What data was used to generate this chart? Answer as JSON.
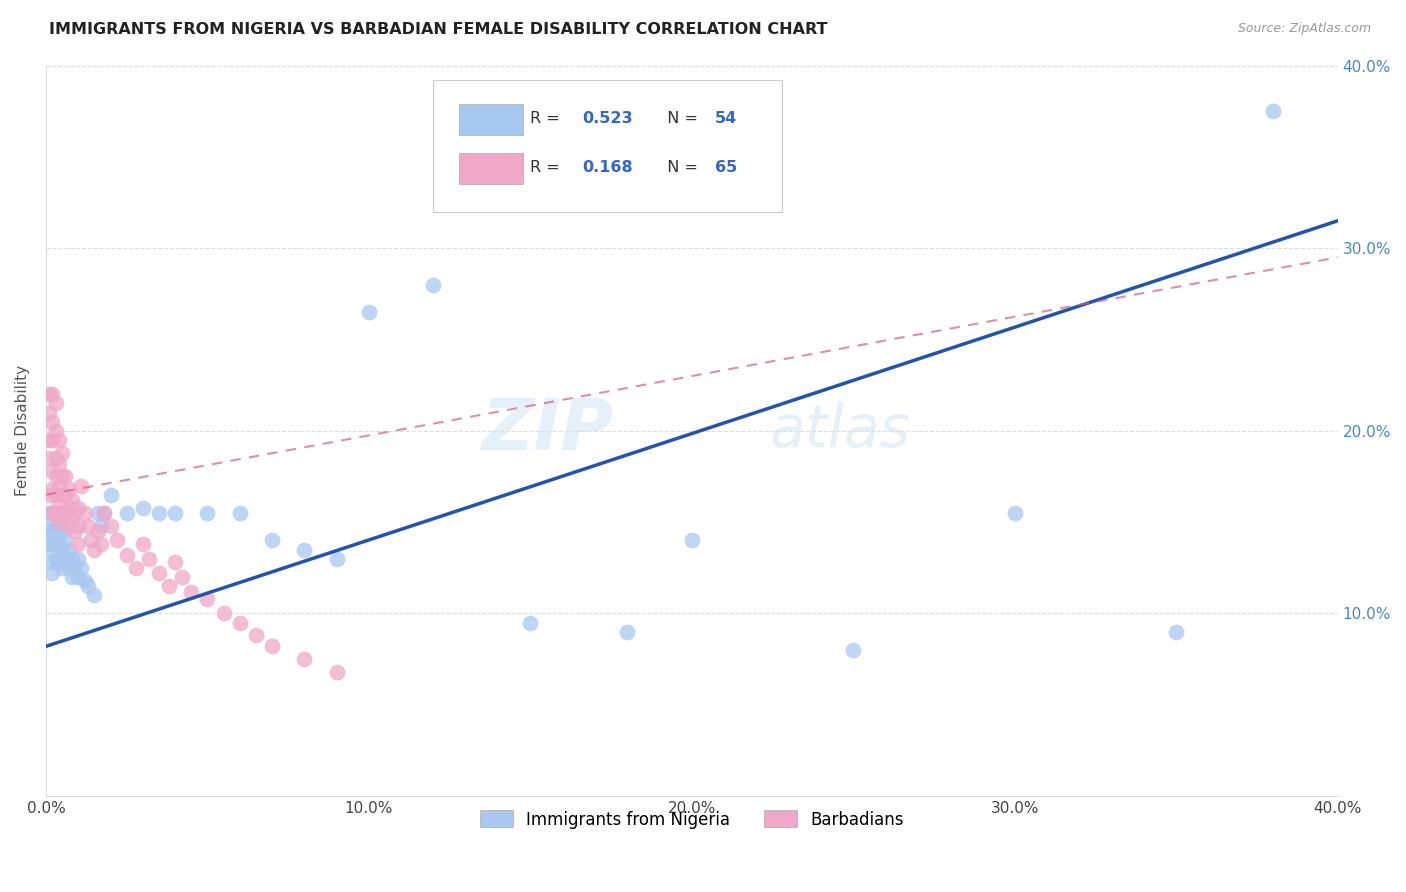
{
  "title": "IMMIGRANTS FROM NIGERIA VS BARBADIAN FEMALE DISABILITY CORRELATION CHART",
  "source": "Source: ZipAtlas.com",
  "ylabel": "Female Disability",
  "xlim": [
    0.0,
    0.4
  ],
  "ylim": [
    0.0,
    0.4
  ],
  "legend_R1": "0.523",
  "legend_N1": "54",
  "legend_R2": "0.168",
  "legend_N2": "65",
  "series1_color": "#a8c8f0",
  "series2_color": "#f0a8c8",
  "line1_color": "#2255aa",
  "line2_color": "#d06080",
  "watermark_zip": "ZIP",
  "watermark_atlas": "atlas",
  "background_color": "#ffffff",
  "grid_color": "#dddddd",
  "series1_name": "Immigrants from Nigeria",
  "series2_name": "Barbadians",
  "nigeria_x": [
    0.001,
    0.001,
    0.001,
    0.001,
    0.002,
    0.002,
    0.002,
    0.002,
    0.002,
    0.003,
    0.003,
    0.003,
    0.003,
    0.004,
    0.004,
    0.004,
    0.005,
    0.005,
    0.005,
    0.006,
    0.006,
    0.007,
    0.007,
    0.008,
    0.008,
    0.009,
    0.01,
    0.01,
    0.011,
    0.012,
    0.013,
    0.015,
    0.016,
    0.017,
    0.018,
    0.02,
    0.025,
    0.03,
    0.035,
    0.04,
    0.05,
    0.06,
    0.07,
    0.08,
    0.09,
    0.1,
    0.12,
    0.15,
    0.18,
    0.2,
    0.25,
    0.3,
    0.35,
    0.38
  ],
  "nigeria_y": [
    0.155,
    0.148,
    0.143,
    0.138,
    0.155,
    0.145,
    0.135,
    0.128,
    0.122,
    0.155,
    0.148,
    0.138,
    0.13,
    0.148,
    0.138,
    0.128,
    0.145,
    0.135,
    0.125,
    0.14,
    0.13,
    0.135,
    0.125,
    0.13,
    0.12,
    0.125,
    0.13,
    0.12,
    0.125,
    0.118,
    0.115,
    0.11,
    0.155,
    0.148,
    0.155,
    0.165,
    0.155,
    0.158,
    0.155,
    0.155,
    0.155,
    0.155,
    0.14,
    0.135,
    0.13,
    0.265,
    0.28,
    0.095,
    0.09,
    0.14,
    0.08,
    0.155,
    0.09,
    0.375
  ],
  "barbadian_x": [
    0.001,
    0.001,
    0.001,
    0.001,
    0.001,
    0.002,
    0.002,
    0.002,
    0.002,
    0.002,
    0.002,
    0.003,
    0.003,
    0.003,
    0.003,
    0.003,
    0.003,
    0.004,
    0.004,
    0.004,
    0.004,
    0.004,
    0.005,
    0.005,
    0.005,
    0.005,
    0.006,
    0.006,
    0.006,
    0.007,
    0.007,
    0.007,
    0.008,
    0.008,
    0.009,
    0.009,
    0.01,
    0.01,
    0.01,
    0.011,
    0.012,
    0.013,
    0.014,
    0.015,
    0.016,
    0.017,
    0.018,
    0.02,
    0.022,
    0.025,
    0.028,
    0.03,
    0.032,
    0.035,
    0.038,
    0.04,
    0.042,
    0.045,
    0.05,
    0.055,
    0.06,
    0.065,
    0.07,
    0.08,
    0.09
  ],
  "barbadian_y": [
    0.22,
    0.21,
    0.195,
    0.185,
    0.165,
    0.22,
    0.205,
    0.195,
    0.178,
    0.168,
    0.155,
    0.215,
    0.2,
    0.185,
    0.175,
    0.165,
    0.155,
    0.195,
    0.182,
    0.17,
    0.16,
    0.15,
    0.188,
    0.175,
    0.165,
    0.155,
    0.175,
    0.165,
    0.155,
    0.168,
    0.158,
    0.148,
    0.162,
    0.152,
    0.155,
    0.145,
    0.158,
    0.148,
    0.138,
    0.17,
    0.155,
    0.148,
    0.14,
    0.135,
    0.145,
    0.138,
    0.155,
    0.148,
    0.14,
    0.132,
    0.125,
    0.138,
    0.13,
    0.122,
    0.115,
    0.128,
    0.12,
    0.112,
    0.108,
    0.1,
    0.095,
    0.088,
    0.082,
    0.075,
    0.068
  ],
  "line1_x0": 0.0,
  "line1_y0": 0.082,
  "line1_x1": 0.4,
  "line1_y1": 0.315,
  "line2_x0": 0.0,
  "line2_y0": 0.165,
  "line2_x1": 0.4,
  "line2_y1": 0.295
}
